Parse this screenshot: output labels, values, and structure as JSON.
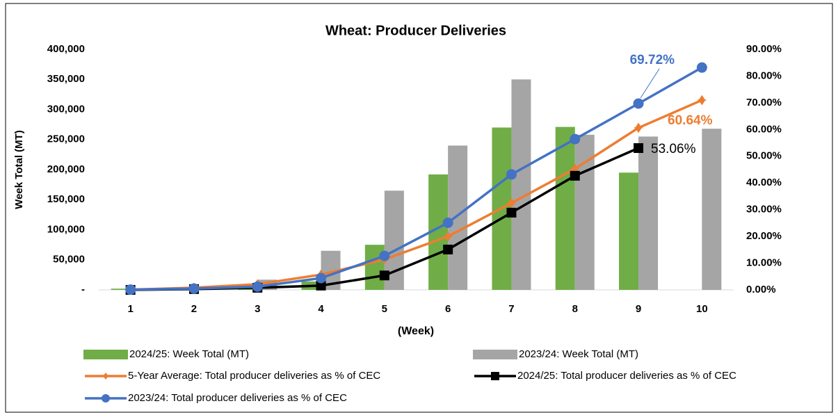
{
  "chart_data": {
    "type": "bar",
    "title": "Wheat: Producer Deliveries",
    "y_label": "Week Total (MT)",
    "x_label": "(Week)",
    "categories": [
      "1",
      "2",
      "3",
      "4",
      "5",
      "6",
      "7",
      "8",
      "9",
      "10"
    ],
    "ylim": [
      0,
      400000
    ],
    "yticks": [
      {
        "value": 0,
        "label": "-"
      },
      {
        "value": 50000,
        "label": "50,000"
      },
      {
        "value": 100000,
        "label": "100,000"
      },
      {
        "value": 150000,
        "label": "150,000"
      },
      {
        "value": 200000,
        "label": "200,000"
      },
      {
        "value": 250000,
        "label": "250,000"
      },
      {
        "value": 300000,
        "label": "300,000"
      },
      {
        "value": 350000,
        "label": "350,000"
      },
      {
        "value": 400000,
        "label": "400,000"
      }
    ],
    "y2lim": [
      0,
      90
    ],
    "y2ticks": [
      {
        "value": 0,
        "label": "0.00%"
      },
      {
        "value": 10,
        "label": "10.00%"
      },
      {
        "value": 20,
        "label": "20.00%"
      },
      {
        "value": 30,
        "label": "30.00%"
      },
      {
        "value": 40,
        "label": "40.00%"
      },
      {
        "value": 50,
        "label": "50.00%"
      },
      {
        "value": 60,
        "label": "60.00%"
      },
      {
        "value": 70,
        "label": "70.00%"
      },
      {
        "value": 80,
        "label": "80.00%"
      },
      {
        "value": 90,
        "label": "90.00%"
      }
    ],
    "series": [
      {
        "name": "2024/25: Week Total (MT)",
        "type": "bar",
        "color": "#70ad47",
        "values": [
          2000,
          3000,
          4000,
          14000,
          75000,
          192000,
          270000,
          271000,
          195000,
          null
        ]
      },
      {
        "name": "2023/24: Week Total (MT)",
        "type": "bar",
        "color": "#a5a5a5",
        "values": [
          2000,
          6000,
          17000,
          65000,
          165000,
          240000,
          350000,
          258000,
          255000,
          268000
        ]
      },
      {
        "name": "5-Year Average: Total producer deliveries as % of CEC",
        "type": "line",
        "axis": "y2",
        "color": "#ed7d31",
        "marker": "diamond",
        "values": [
          0.1,
          0.8,
          2.1,
          5.7,
          11.4,
          20,
          32.5,
          45.3,
          60.64,
          71
        ],
        "value_labels": [
          null,
          null,
          null,
          null,
          null,
          null,
          null,
          null,
          "60.64%",
          null
        ]
      },
      {
        "name": "2024/25: Total producer deliveries as % of CEC",
        "type": "line",
        "axis": "y2",
        "color": "#000000",
        "marker": "square",
        "values": [
          0,
          0.3,
          0.8,
          1.6,
          5.4,
          15.1,
          28.9,
          42.7,
          53.06,
          null
        ],
        "value_labels": [
          null,
          null,
          null,
          null,
          null,
          null,
          null,
          null,
          "53.06%",
          null
        ]
      },
      {
        "name": "2023/24: Total producer deliveries as % of CEC",
        "type": "line",
        "axis": "y2",
        "color": "#4472c4",
        "marker": "circle",
        "values": [
          0.1,
          0.5,
          1.2,
          4.4,
          12.7,
          25.1,
          43.2,
          56.4,
          69.72,
          83.2
        ],
        "value_labels": [
          null,
          null,
          null,
          null,
          null,
          null,
          null,
          null,
          "69.72%",
          null
        ]
      }
    ]
  }
}
